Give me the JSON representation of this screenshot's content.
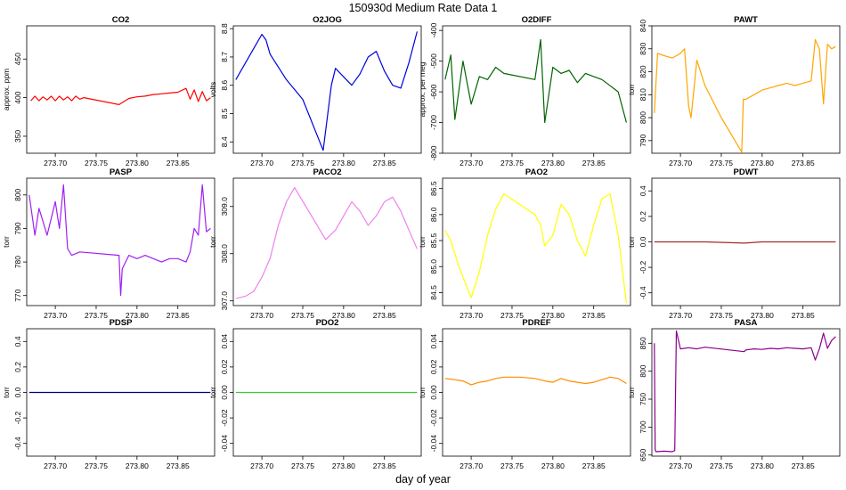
{
  "figure": {
    "title": "150930d   Medium Rate Data 1",
    "xlabel": "day of year"
  },
  "chart_data": [
    {
      "type": "line",
      "title": "CO2",
      "ylabel": "approx. ppm",
      "color": "#ff0000",
      "xlim": [
        273.665,
        273.895
      ],
      "ylim": [
        328,
        493
      ],
      "xticks": [
        "273.70",
        "273.75",
        "273.80",
        "273.85"
      ],
      "yticks": [
        "350",
        "400",
        "450"
      ],
      "series": [
        {
          "x": [
            273.67,
            273.675,
            273.68,
            273.685,
            273.69,
            273.695,
            273.7,
            273.705,
            273.71,
            273.715,
            273.72,
            273.725,
            273.73,
            273.735,
            273.778,
            273.79,
            273.8,
            273.81,
            273.82,
            273.83,
            273.84,
            273.85,
            273.86,
            273.865,
            273.87,
            273.875,
            273.88,
            273.885,
            273.89
          ],
          "y": [
            396,
            402,
            396,
            401,
            397,
            402,
            396,
            402,
            397,
            401,
            396,
            402,
            398,
            400,
            391,
            399,
            401,
            402,
            404,
            405,
            406,
            407,
            412,
            398,
            410,
            395,
            408,
            396,
            400
          ]
        }
      ]
    },
    {
      "type": "line",
      "title": "O2JOG",
      "ylabel": "volts",
      "color": "#0000dd",
      "xlim": [
        273.665,
        273.895
      ],
      "ylim": [
        8.36,
        8.81
      ],
      "xticks": [
        "273.70",
        "273.75",
        "273.80",
        "273.85"
      ],
      "yticks": [
        "8.4",
        "8.5",
        "8.6",
        "8.7",
        "8.8"
      ],
      "series": [
        {
          "x": [
            273.668,
            273.68,
            273.69,
            273.7,
            273.705,
            273.71,
            273.73,
            273.75,
            273.775,
            273.785,
            273.79,
            273.8,
            273.81,
            273.82,
            273.83,
            273.84,
            273.85,
            273.86,
            273.87,
            273.88,
            273.89
          ],
          "y": [
            8.62,
            8.68,
            8.73,
            8.78,
            8.76,
            8.71,
            8.62,
            8.55,
            8.37,
            8.6,
            8.66,
            8.63,
            8.6,
            8.64,
            8.7,
            8.72,
            8.65,
            8.6,
            8.59,
            8.68,
            8.79
          ]
        }
      ]
    },
    {
      "type": "line",
      "title": "O2DIFF",
      "ylabel": "approx. per meg",
      "color": "#006400",
      "xlim": [
        273.665,
        273.895
      ],
      "ylim": [
        -800,
        -385
      ],
      "xticks": [
        "273.70",
        "273.75",
        "273.80",
        "273.85"
      ],
      "yticks": [
        "-800",
        "-700",
        "-600",
        "-500",
        "-400"
      ],
      "series": [
        {
          "x": [
            273.668,
            273.675,
            273.68,
            273.69,
            273.7,
            273.71,
            273.72,
            273.73,
            273.74,
            273.778,
            273.785,
            273.79,
            273.8,
            273.81,
            273.82,
            273.83,
            273.84,
            273.85,
            273.86,
            273.87,
            273.88,
            273.89
          ],
          "y": [
            -560,
            -480,
            -690,
            -500,
            -640,
            -550,
            -560,
            -520,
            -540,
            -560,
            -430,
            -700,
            -520,
            -540,
            -530,
            -570,
            -540,
            -550,
            -560,
            -580,
            -600,
            -700
          ]
        }
      ]
    },
    {
      "type": "line",
      "title": "PAWT",
      "ylabel": "torr",
      "color": "#ffa500",
      "xlim": [
        273.665,
        273.895
      ],
      "ylim": [
        784.5,
        840
      ],
      "xticks": [
        "273.70",
        "273.75",
        "273.80",
        "273.85"
      ],
      "yticks": [
        "790",
        "800",
        "810",
        "820",
        "830",
        "840"
      ],
      "series": [
        {
          "x": [
            273.668,
            273.672,
            273.68,
            273.69,
            273.7,
            273.705,
            273.71,
            273.713,
            273.72,
            273.73,
            273.75,
            273.775,
            273.777,
            273.78,
            273.79,
            273.8,
            273.81,
            273.82,
            273.83,
            273.84,
            273.85,
            273.86,
            273.865,
            273.87,
            273.875,
            273.88,
            273.885,
            273.89
          ],
          "y": [
            802,
            828,
            827,
            826,
            828,
            830,
            805,
            800,
            825,
            814,
            800,
            785,
            808,
            808,
            810,
            812,
            813,
            814,
            815,
            814,
            815,
            816,
            834,
            830,
            806,
            832,
            830,
            831
          ]
        }
      ]
    },
    {
      "type": "line",
      "title": "PASP",
      "ylabel": "torr",
      "color": "#a020f0",
      "xlim": [
        273.665,
        273.895
      ],
      "ylim": [
        767,
        805
      ],
      "xticks": [
        "273.70",
        "273.75",
        "273.80",
        "273.85"
      ],
      "yticks": [
        "770",
        "780",
        "790",
        "800"
      ],
      "series": [
        {
          "x": [
            273.668,
            273.675,
            273.68,
            273.69,
            273.7,
            273.705,
            273.71,
            273.715,
            273.72,
            273.73,
            273.778,
            273.78,
            273.782,
            273.79,
            273.8,
            273.81,
            273.82,
            273.83,
            273.84,
            273.85,
            273.86,
            273.865,
            273.87,
            273.875,
            273.88,
            273.885,
            273.89
          ],
          "y": [
            800,
            788,
            796,
            788,
            798,
            790,
            803,
            784,
            782,
            783,
            782,
            770,
            778,
            782,
            781,
            782,
            781,
            780,
            781,
            781,
            780,
            783,
            790,
            788,
            803,
            789,
            790
          ]
        }
      ]
    },
    {
      "type": "line",
      "title": "PACO2",
      "ylabel": "torr",
      "color": "#ee82ee",
      "xlim": [
        273.665,
        273.895
      ],
      "ylim": [
        306.9,
        309.6
      ],
      "xticks": [
        "273.70",
        "273.75",
        "273.80",
        "273.85"
      ],
      "yticks": [
        "307.0",
        "308.0",
        "309.0"
      ],
      "series": [
        {
          "x": [
            273.668,
            273.68,
            273.69,
            273.7,
            273.71,
            273.72,
            273.73,
            273.74,
            273.778,
            273.79,
            273.8,
            273.81,
            273.82,
            273.83,
            273.84,
            273.85,
            273.86,
            273.87,
            273.88,
            273.89
          ],
          "y": [
            307.05,
            307.1,
            307.2,
            307.5,
            307.9,
            308.6,
            309.1,
            309.4,
            308.3,
            308.5,
            308.8,
            309.1,
            308.9,
            308.6,
            308.8,
            309.1,
            309.2,
            308.9,
            308.5,
            308.1
          ]
        }
      ]
    },
    {
      "type": "line",
      "title": "PAO2",
      "ylabel": "torr",
      "color": "#ffff00",
      "xlim": [
        273.665,
        273.895
      ],
      "ylim": [
        84.25,
        86.7
      ],
      "xticks": [
        "273.70",
        "273.75",
        "273.80",
        "273.85"
      ],
      "yticks": [
        "84.5",
        "85.0",
        "85.5",
        "86.0",
        "86.5"
      ],
      "series": [
        {
          "x": [
            273.668,
            273.675,
            273.685,
            273.695,
            273.7,
            273.71,
            273.72,
            273.73,
            273.74,
            273.778,
            273.785,
            273.79,
            273.8,
            273.81,
            273.82,
            273.83,
            273.84,
            273.85,
            273.86,
            273.87,
            273.88,
            273.89
          ],
          "y": [
            85.7,
            85.5,
            85.0,
            84.6,
            84.4,
            84.9,
            85.6,
            86.1,
            86.4,
            86.0,
            85.8,
            85.4,
            85.6,
            86.2,
            86.0,
            85.5,
            85.2,
            85.8,
            86.3,
            86.4,
            85.6,
            84.3
          ]
        }
      ]
    },
    {
      "type": "line",
      "title": "PDWT",
      "ylabel": "torr",
      "color": "#a52a2a",
      "xlim": [
        273.665,
        273.895
      ],
      "ylim": [
        -0.5,
        0.5
      ],
      "xticks": [
        "273.70",
        "273.75",
        "273.80",
        "273.85"
      ],
      "yticks": [
        "-0.4",
        "-0.2",
        "0.0",
        "0.2",
        "0.4"
      ],
      "series": [
        {
          "x": [
            273.668,
            273.7,
            273.73,
            273.778,
            273.8,
            273.83,
            273.86,
            273.89
          ],
          "y": [
            0.0,
            0.0,
            0.0,
            -0.01,
            0.0,
            0.0,
            0.0,
            0.0
          ]
        }
      ]
    },
    {
      "type": "line",
      "title": "PDSP",
      "ylabel": "torr",
      "color": "#00008b",
      "xlim": [
        273.665,
        273.895
      ],
      "ylim": [
        -0.5,
        0.5
      ],
      "xticks": [
        "273.70",
        "273.75",
        "273.80",
        "273.85"
      ],
      "yticks": [
        "-0.4",
        "-0.2",
        "0.0",
        "0.2",
        "0.4"
      ],
      "series": [
        {
          "x": [
            273.668,
            273.7,
            273.73,
            273.778,
            273.8,
            273.83,
            273.86,
            273.89
          ],
          "y": [
            0.0,
            0.0,
            0.0,
            0.0,
            0.0,
            0.0,
            0.0,
            0.0
          ]
        }
      ]
    },
    {
      "type": "line",
      "title": "PDO2",
      "ylabel": "torr",
      "color": "#32cd32",
      "xlim": [
        273.665,
        273.895
      ],
      "ylim": [
        -0.05,
        0.05
      ],
      "xticks": [
        "273.70",
        "273.75",
        "273.80",
        "273.85"
      ],
      "yticks": [
        "-0.04",
        "-0.02",
        "0.00",
        "0.02",
        "0.04"
      ],
      "series": [
        {
          "x": [
            273.668,
            273.7,
            273.73,
            273.778,
            273.8,
            273.83,
            273.86,
            273.89
          ],
          "y": [
            0.0,
            0.0,
            0.0,
            0.0,
            0.0,
            0.0,
            0.0,
            0.0
          ]
        }
      ]
    },
    {
      "type": "line",
      "title": "PDREF",
      "ylabel": "torr",
      "color": "#ff8c00",
      "xlim": [
        273.665,
        273.895
      ],
      "ylim": [
        -0.05,
        0.05
      ],
      "xticks": [
        "273.70",
        "273.75",
        "273.80",
        "273.85"
      ],
      "yticks": [
        "-0.04",
        "-0.02",
        "0.00",
        "0.02",
        "0.04"
      ],
      "series": [
        {
          "x": [
            273.668,
            273.68,
            273.69,
            273.7,
            273.71,
            273.72,
            273.73,
            273.74,
            273.76,
            273.778,
            273.79,
            273.8,
            273.81,
            273.82,
            273.83,
            273.84,
            273.85,
            273.86,
            273.87,
            273.88,
            273.89
          ],
          "y": [
            0.011,
            0.01,
            0.009,
            0.006,
            0.008,
            0.009,
            0.011,
            0.012,
            0.012,
            0.011,
            0.009,
            0.008,
            0.011,
            0.009,
            0.008,
            0.007,
            0.008,
            0.01,
            0.012,
            0.011,
            0.007
          ]
        }
      ]
    },
    {
      "type": "line",
      "title": "PASA",
      "ylabel": "torr",
      "color": "#8b008b",
      "xlim": [
        273.665,
        273.895
      ],
      "ylim": [
        648,
        876
      ],
      "xticks": [
        "273.70",
        "273.75",
        "273.80",
        "273.85"
      ],
      "yticks": [
        "650",
        "700",
        "750",
        "800",
        "850"
      ],
      "series": [
        {
          "x": [
            273.668,
            273.669,
            273.67,
            273.68,
            273.69,
            273.693,
            273.695,
            273.7,
            273.71,
            273.72,
            273.73,
            273.778,
            273.78,
            273.79,
            273.8,
            273.81,
            273.82,
            273.83,
            273.84,
            273.85,
            273.86,
            273.865,
            273.87,
            273.875,
            273.88,
            273.885,
            273.89
          ],
          "y": [
            850,
            660,
            656,
            657,
            656,
            658,
            872,
            840,
            842,
            840,
            843,
            835,
            838,
            840,
            839,
            841,
            840,
            842,
            841,
            840,
            842,
            820,
            840,
            868,
            841,
            855,
            862
          ]
        }
      ]
    }
  ]
}
